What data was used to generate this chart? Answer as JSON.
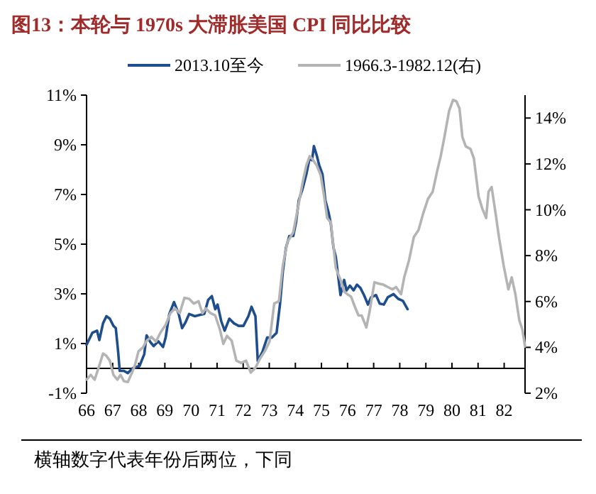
{
  "chart_data": {
    "type": "line",
    "title": "图13：本轮与 1970s 大滞胀美国 CPI 同比比较",
    "annotations": [
      "横轴数字代表年份后两位，下同"
    ],
    "legend": "top",
    "grid": false,
    "xlim": [
      66,
      82.8
    ],
    "xticks": [
      66,
      67,
      68,
      69,
      70,
      71,
      72,
      73,
      74,
      75,
      76,
      77,
      78,
      79,
      80,
      81,
      82
    ],
    "ylim": [
      -1,
      11
    ],
    "yticks": [
      {
        "value": -1,
        "label": "-1%"
      },
      {
        "value": 1,
        "label": "1%"
      },
      {
        "value": 3,
        "label": "3%"
      },
      {
        "value": 5,
        "label": "5%"
      },
      {
        "value": 7,
        "label": "7%"
      },
      {
        "value": 9,
        "label": "9%"
      },
      {
        "value": 11,
        "label": "11%"
      }
    ],
    "y2lim": [
      2,
      15
    ],
    "y2ticks": [
      {
        "value": 2,
        "label": "2%"
      },
      {
        "value": 4,
        "label": "4%"
      },
      {
        "value": 6,
        "label": "6%"
      },
      {
        "value": 8,
        "label": "8%"
      },
      {
        "value": 10,
        "label": "10%"
      },
      {
        "value": 12,
        "label": "12%"
      },
      {
        "value": 14,
        "label": "14%"
      }
    ],
    "series": [
      {
        "name": "2013.10至今",
        "color": "#1f4e8c",
        "x": [
          66.0,
          66.22,
          66.4,
          66.49,
          66.63,
          66.76,
          66.89,
          67.03,
          67.12,
          67.21,
          67.27,
          67.43,
          67.58,
          67.76,
          68.03,
          68.21,
          68.3,
          68.45,
          68.57,
          68.75,
          68.93,
          69.03,
          69.17,
          69.35,
          69.53,
          69.66,
          69.79,
          69.93,
          70.15,
          70.33,
          70.51,
          70.66,
          70.8,
          70.93,
          71.02,
          71.16,
          71.29,
          71.47,
          71.65,
          71.83,
          72.01,
          72.2,
          72.32,
          72.47,
          72.56,
          72.74,
          72.92,
          73.1,
          73.28,
          73.41,
          73.52,
          73.64,
          73.77,
          73.92,
          74.03,
          74.13,
          74.28,
          74.42,
          74.55,
          74.64,
          74.71,
          74.82,
          74.91,
          75.04,
          75.15,
          75.27,
          75.36,
          75.46,
          75.55,
          75.64,
          75.73,
          75.87,
          75.96,
          76.09,
          76.23,
          76.36,
          76.49,
          76.63,
          76.78,
          76.9,
          77.09,
          77.23,
          77.39,
          77.54,
          77.76,
          77.94,
          78.12,
          78.3
        ],
        "values": [
          0.95,
          1.43,
          1.52,
          1.14,
          1.81,
          2.1,
          2.0,
          1.71,
          1.62,
          0.67,
          -0.1,
          -0.1,
          -0.19,
          0.0,
          0.1,
          0.57,
          1.33,
          1.05,
          0.9,
          1.09,
          0.86,
          1.24,
          2.19,
          2.67,
          2.19,
          1.62,
          1.85,
          2.19,
          2.1,
          2.15,
          2.19,
          2.76,
          2.91,
          2.38,
          2.57,
          1.9,
          1.52,
          2.0,
          1.81,
          1.71,
          1.71,
          2.1,
          2.48,
          2.1,
          0.29,
          0.67,
          1.24,
          1.24,
          1.43,
          2.57,
          3.9,
          4.86,
          5.33,
          5.33,
          5.9,
          6.76,
          7.24,
          7.81,
          8.48,
          8.38,
          8.95,
          8.57,
          8.19,
          7.81,
          6.76,
          6.29,
          5.81,
          4.86,
          4.48,
          3.71,
          2.95,
          3.56,
          3.14,
          3.33,
          3.14,
          3.37,
          3.24,
          2.95,
          2.57,
          2.86,
          2.95,
          2.61,
          2.57,
          2.86,
          2.99,
          2.8,
          2.72,
          2.38
        ]
      },
      {
        "name": "1966.3-1982.12(右)",
        "color": "#b4b4b4",
        "axis": "y2",
        "x": [
          66.0,
          66.16,
          66.31,
          66.49,
          66.63,
          66.76,
          66.89,
          67.03,
          67.18,
          67.3,
          67.43,
          67.58,
          67.72,
          67.85,
          67.99,
          68.16,
          68.3,
          68.48,
          68.66,
          68.84,
          69.03,
          69.21,
          69.39,
          69.57,
          69.75,
          69.93,
          70.11,
          70.29,
          70.44,
          70.57,
          70.75,
          70.93,
          71.11,
          71.24,
          71.38,
          71.56,
          71.74,
          71.92,
          72.11,
          72.29,
          72.47,
          72.65,
          72.83,
          73.01,
          73.19,
          73.37,
          73.52,
          73.7,
          73.92,
          74.13,
          74.28,
          74.42,
          74.55,
          74.68,
          74.82,
          74.97,
          75.09,
          75.22,
          75.36,
          75.55,
          75.73,
          75.87,
          75.99,
          76.13,
          76.27,
          76.42,
          76.54,
          76.72,
          76.85,
          77.03,
          77.18,
          77.36,
          77.54,
          77.72,
          77.86,
          78.05,
          78.17,
          78.35,
          78.54,
          78.72,
          78.9,
          79.08,
          79.26,
          79.44,
          79.57,
          79.71,
          79.89,
          80.04,
          80.17,
          80.29,
          80.4,
          80.53,
          80.71,
          80.84,
          81.02,
          81.16,
          81.31,
          81.4,
          81.52,
          81.67,
          81.8,
          81.98,
          82.16,
          82.29,
          82.43,
          82.58,
          82.7,
          82.8
        ],
        "values": [
          2.59,
          2.8,
          2.59,
          3.21,
          3.73,
          3.63,
          3.42,
          2.8,
          2.59,
          2.8,
          2.53,
          2.49,
          2.84,
          3.21,
          3.83,
          4.0,
          4.29,
          4.46,
          4.25,
          4.66,
          4.98,
          5.49,
          5.7,
          5.49,
          6.16,
          6.12,
          5.91,
          6.01,
          5.49,
          5.7,
          5.49,
          5.39,
          4.77,
          4.15,
          4.5,
          4.29,
          3.42,
          3.32,
          3.42,
          2.9,
          3.11,
          3.52,
          3.83,
          4.25,
          5.91,
          6.01,
          7.57,
          8.61,
          9.02,
          10.27,
          11.2,
          11.93,
          12.34,
          12.17,
          11.93,
          11.51,
          10.68,
          9.64,
          9.44,
          7.46,
          6.95,
          6.43,
          6.32,
          6.22,
          5.8,
          5.39,
          5.39,
          4.87,
          5.6,
          6.84,
          6.78,
          6.74,
          6.63,
          6.53,
          6.63,
          6.32,
          7.05,
          7.78,
          8.81,
          9.12,
          9.85,
          10.47,
          10.78,
          11.72,
          12.34,
          13.17,
          14.31,
          14.79,
          14.73,
          14.41,
          13.17,
          12.76,
          12.65,
          12.24,
          10.58,
          10.06,
          9.64,
          10.78,
          10.99,
          9.85,
          8.81,
          7.57,
          6.53,
          7.05,
          6.32,
          5.18,
          4.77,
          4.04
        ]
      }
    ]
  }
}
